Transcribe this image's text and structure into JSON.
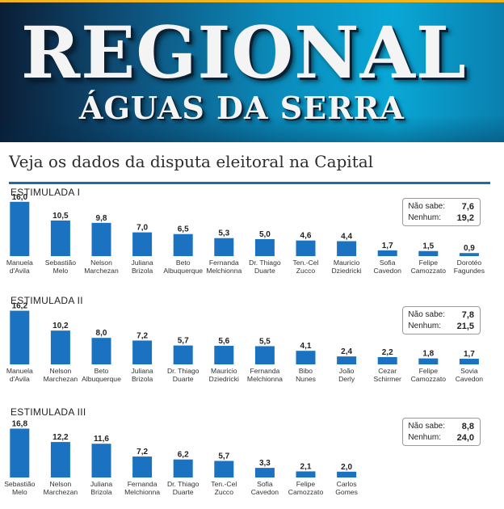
{
  "header": {
    "brand": "REGIONAL",
    "subtitle": "ÁGUAS DA SERRA"
  },
  "headline": "Veja os dados da disputa eleitoral na Capital",
  "colors": {
    "bar": "#1a72c0",
    "banner_accent": "#f2b51e",
    "rule": "#1a6cb0"
  },
  "chart_data": [
    {
      "type": "bar",
      "title": "ESTIMULADA I",
      "categories": [
        "Manuela\nd'Avila",
        "Sebastião\nMelo",
        "Nelson\nMarchezan",
        "Juliana\nBrizola",
        "Beto\nAlbuquerque",
        "Fernanda\nMelchionna",
        "Dr. Thiago\nDuarte",
        "Ten.-Cel\nZucco",
        "Mauricio\nDziedricki",
        "Sofia\nCavedon",
        "Felipe\nCamozzato",
        "Dorotéo\nFagundes"
      ],
      "values": [
        16.0,
        10.5,
        9.8,
        7.0,
        6.5,
        5.3,
        5.0,
        4.6,
        4.4,
        1.7,
        1.5,
        0.9
      ],
      "value_labels": [
        "16,0",
        "10,5",
        "9,8",
        "7,0",
        "6,5",
        "5,3",
        "5,0",
        "4,6",
        "4,4",
        "1,7",
        "1,5",
        "0,9"
      ],
      "legend": [
        {
          "label": "Não sabe:",
          "value": "7,6"
        },
        {
          "label": "Nenhum:",
          "value": "19,2"
        }
      ]
    },
    {
      "type": "bar",
      "title": "ESTIMULADA II",
      "categories": [
        "Manuela\nd'Avila",
        "Nelson\nMarchezan",
        "Beto\nAlbuquerque",
        "Juliana\nBrizola",
        "Dr. Thiago\nDuarte",
        "Mauricio\nDziedricki",
        "Fernanda\nMelchionna",
        "Bibo\nNunes",
        "João\nDerly",
        "Cezar\nSchirmer",
        "Felipe\nCamozzato",
        "Sovia\nCavedon"
      ],
      "values": [
        16.2,
        10.2,
        8.0,
        7.2,
        5.7,
        5.6,
        5.5,
        4.1,
        2.4,
        2.2,
        1.8,
        1.7
      ],
      "value_labels": [
        "16,2",
        "10,2",
        "8,0",
        "7,2",
        "5,7",
        "5,6",
        "5,5",
        "4,1",
        "2,4",
        "2,2",
        "1,8",
        "1,7"
      ],
      "legend": [
        {
          "label": "Não sabe:",
          "value": "7,8"
        },
        {
          "label": "Nenhum:",
          "value": "21,5"
        }
      ]
    },
    {
      "type": "bar",
      "title": "ESTIMULADA III",
      "categories": [
        "Sebastião\nMelo",
        "Nelson\nMarchezan",
        "Juliana\nBrizola",
        "Fernanda\nMelchionna",
        "Dr. Thiago\nDuarte",
        "Ten.-Cel\nZucco",
        "Sofia\nCavedon",
        "Felipe\nCamozzato",
        "Carlos\nGomes"
      ],
      "values": [
        16.8,
        12.2,
        11.6,
        7.2,
        6.2,
        5.7,
        3.3,
        2.1,
        2.0
      ],
      "value_labels": [
        "16,8",
        "12,2",
        "11,6",
        "7,2",
        "6,2",
        "5,7",
        "3,3",
        "2,1",
        "2,0"
      ],
      "legend": [
        {
          "label": "Não sabe:",
          "value": "8,8"
        },
        {
          "label": "Nenhum:",
          "value": "24,0"
        }
      ]
    }
  ]
}
